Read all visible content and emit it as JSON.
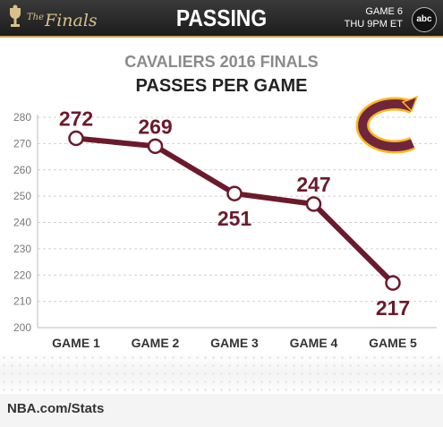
{
  "header": {
    "brand_prefix": "The",
    "brand_name": "Finals",
    "title": "PASSING",
    "game_label": "GAME 6",
    "game_time": "THU 9PM ET",
    "network": "abc"
  },
  "colors": {
    "line": "#6b1a2c",
    "marker_fill": "#ffffff",
    "grid": "#d0d0d0",
    "team_wine": "#6f263d",
    "team_gold": "#ffb81c"
  },
  "footer": {
    "source": "NBA.com/Stats"
  },
  "team_logo": "cavaliers-c-logo",
  "chart_data": {
    "type": "line",
    "subtitle": "CAVALIERS 2016 FINALS",
    "title": "PASSES PER GAME",
    "categories": [
      "GAME 1",
      "GAME 2",
      "GAME 3",
      "GAME 4",
      "GAME 5"
    ],
    "values": [
      272,
      269,
      251,
      247,
      217
    ],
    "data_labels": [
      "272",
      "269",
      "251",
      "247",
      "217"
    ],
    "yticks": [
      200,
      210,
      220,
      230,
      240,
      250,
      260,
      270,
      280
    ],
    "ylim": [
      200,
      280
    ],
    "xlabel": "",
    "ylabel": "",
    "grid": true,
    "legend": "none"
  }
}
